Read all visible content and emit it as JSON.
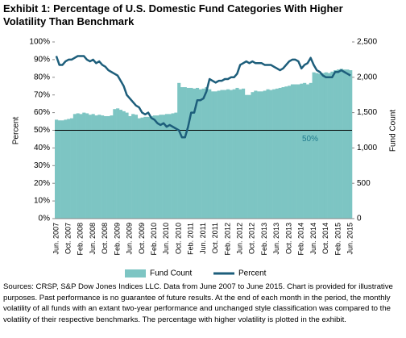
{
  "chart_data": {
    "type": "combo",
    "title": "Exhibit 1: Percentage of U.S. Domestic Fund Categories With Higher Volatility Than Benchmark",
    "y_label": "Percent",
    "y2_label": "Fund Count",
    "categories": [
      "Jun. 2007",
      null,
      null,
      null,
      "Oct. 2007",
      null,
      null,
      null,
      "Feb. 2008",
      null,
      null,
      null,
      "Jun. 2008",
      null,
      null,
      null,
      "Oct. 2008",
      null,
      null,
      null,
      "Feb. 2009",
      null,
      null,
      null,
      "Jun. 2009",
      null,
      null,
      null,
      "Oct. 2009",
      null,
      null,
      null,
      "Feb. 2010",
      null,
      null,
      null,
      "Jun. 2010",
      null,
      null,
      null,
      "Oct. 2010",
      null,
      null,
      null,
      "Feb. 2011",
      null,
      null,
      null,
      "Jun. 2011",
      null,
      null,
      null,
      "Oct. 2011",
      null,
      null,
      null,
      "Feb. 2012",
      null,
      null,
      null,
      "Jun. 2012",
      null,
      null,
      null,
      "Oct. 2012",
      null,
      null,
      null,
      "Feb. 2013",
      null,
      null,
      null,
      "Jun. 2013",
      null,
      null,
      null,
      "Oct. 2013",
      null,
      null,
      null,
      "Feb. 2014",
      null,
      null,
      null,
      "Jun. 2014",
      null,
      null,
      null,
      "Oct. 2014",
      null,
      null,
      null,
      "Feb. 2015",
      null,
      null,
      null,
      "Jun. 2015"
    ],
    "series": [
      {
        "name": "Fund Count",
        "type": "bar",
        "axis": "y2",
        "color": "#7dc5c3",
        "values": [
          1400,
          1390,
          1390,
          1400,
          1410,
          1420,
          1480,
          1490,
          1480,
          1500,
          1490,
          1470,
          1480,
          1460,
          1470,
          1460,
          1450,
          1450,
          1460,
          1550,
          1560,
          1540,
          1520,
          1500,
          1450,
          1480,
          1470,
          1420,
          1430,
          1440,
          1440,
          1450,
          1460,
          1460,
          1470,
          1470,
          1480,
          1480,
          1490,
          1500,
          1920,
          1860,
          1860,
          1850,
          1850,
          1840,
          1850,
          1830,
          1840,
          1860,
          1830,
          1800,
          1800,
          1810,
          1820,
          1820,
          1830,
          1820,
          1830,
          1850,
          1830,
          1840,
          1750,
          1750,
          1790,
          1810,
          1800,
          1800,
          1810,
          1830,
          1820,
          1830,
          1840,
          1850,
          1860,
          1870,
          1880,
          1900,
          1900,
          1900,
          1910,
          1920,
          1900,
          1920,
          2070,
          2060,
          2050,
          2060,
          2070,
          2060,
          2080,
          2100,
          2110,
          2120,
          2110,
          2110,
          2100
        ]
      },
      {
        "name": "Percent",
        "type": "line",
        "color": "#1d5e7b",
        "values": [
          92,
          87,
          87,
          89,
          90,
          90,
          91,
          92,
          92,
          92,
          90,
          89,
          90,
          88,
          89,
          87,
          86,
          84,
          83,
          82,
          81,
          78,
          75,
          70,
          68,
          66,
          64,
          63,
          60,
          59,
          60,
          57,
          56,
          54,
          53,
          54,
          52,
          53,
          52,
          51,
          50,
          46,
          46,
          52,
          60,
          60,
          67,
          67,
          68,
          72,
          79,
          78,
          77,
          78,
          78,
          79,
          79,
          80,
          80,
          82,
          87,
          88,
          89,
          88,
          89,
          88,
          88,
          88,
          87,
          87,
          87,
          86,
          85,
          84,
          85,
          87,
          89,
          90,
          90,
          89,
          85,
          87,
          88,
          91,
          87,
          84,
          83,
          81,
          80,
          80,
          80,
          83,
          83,
          84,
          83,
          82,
          81
        ]
      }
    ],
    "ylim": [
      0,
      100
    ],
    "yticks": [
      {
        "value": 0,
        "label": "0%"
      },
      {
        "value": 10,
        "label": "10%"
      },
      {
        "value": 20,
        "label": "20%"
      },
      {
        "value": 30,
        "label": "30%"
      },
      {
        "value": 40,
        "label": "40%"
      },
      {
        "value": 50,
        "label": "50%"
      },
      {
        "value": 60,
        "label": "60%"
      },
      {
        "value": 70,
        "label": "70%"
      },
      {
        "value": 80,
        "label": "80%"
      },
      {
        "value": 90,
        "label": "90%"
      },
      {
        "value": 100,
        "label": "100%"
      }
    ],
    "y2lim": [
      0,
      2500
    ],
    "y2ticks": [
      0,
      500,
      {
        "value": 1000,
        "label": "1,000"
      },
      {
        "value": 1500,
        "label": "1,500"
      },
      {
        "value": 2000,
        "label": "2,000"
      },
      {
        "value": 2500,
        "label": "2,500"
      }
    ],
    "reference_line": {
      "value": 50,
      "label": "50%",
      "color": "#1f7a8c"
    },
    "grid": false,
    "legend": "bottom",
    "source_note": "Sources: CRSP, S&P Dow Jones Indices LLC.  Data from June 2007 to June 2015.  Chart is provided for illustrative purposes.  Past performance is no guarantee of future results.  At the end of each month in the period, the monthly volatility of all funds with an extant two-year performance and unchanged style classification was compared to the volatility of their respective benchmarks.  The percentage with higher volatility is plotted in the exhibit."
  }
}
